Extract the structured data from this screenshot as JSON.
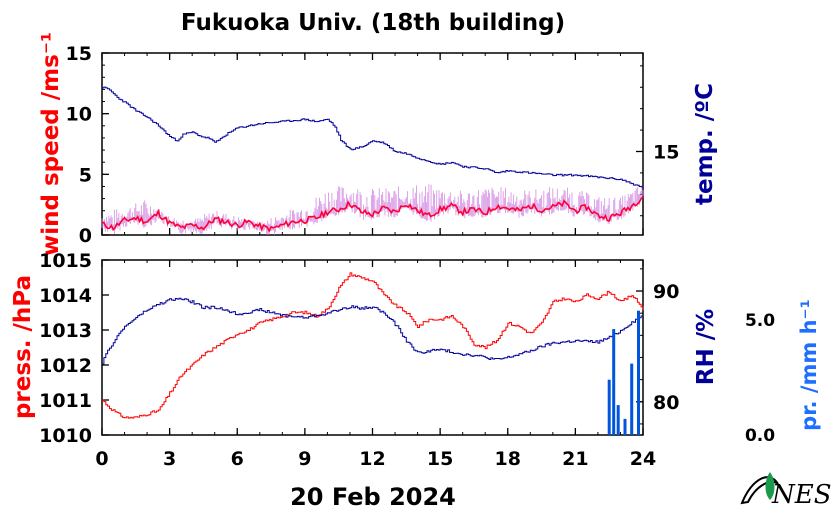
{
  "title": "Fukuoka Univ. (18th building)",
  "date_label": "20 Feb 2024",
  "logo_text": "NES",
  "colors": {
    "wind_label": "#ff0000",
    "wind_line": "#ff0033",
    "wind_gust": "#cc77dd",
    "temp": "#000099",
    "pressure": "#ff0000",
    "rh": "#000099",
    "precip": "#0055dd",
    "precip_label": "#1e6fff",
    "logo_leaf": "#1a9a4a"
  },
  "chart_data": [
    {
      "type": "line",
      "panel": "top",
      "x": [
        0,
        24
      ],
      "xlim": [
        0,
        24
      ],
      "x_ticks": [
        0,
        3,
        6,
        9,
        12,
        15,
        18,
        21,
        24
      ],
      "left_axis": {
        "label": "wind speed /ms⁻¹",
        "ylim": [
          0,
          15
        ],
        "ticks": [
          "0",
          "5",
          "10",
          "15"
        ]
      },
      "right_axis": {
        "label": "temp. /ºC",
        "ylim": [
          11.1,
          19.6
        ],
        "ticks": [
          "15"
        ]
      },
      "series": [
        {
          "key": "wind",
          "axis": "left",
          "x": [
            0,
            0.5,
            1,
            1.5,
            2,
            2.5,
            3,
            3.5,
            4,
            4.5,
            5,
            5.5,
            6,
            6.5,
            7,
            7.5,
            8,
            8.5,
            9,
            9.5,
            10,
            10.5,
            11,
            11.5,
            12,
            12.5,
            13,
            13.5,
            14,
            14.5,
            15,
            15.5,
            16,
            16.5,
            17,
            17.5,
            18,
            18.5,
            19,
            19.5,
            20,
            20.5,
            21,
            21.5,
            22,
            22.5,
            23,
            23.5,
            24
          ],
          "values": [
            0.9,
            0.6,
            1.2,
            1.4,
            1.1,
            1.8,
            1.0,
            0.6,
            0.8,
            0.6,
            1.3,
            1.1,
            0.8,
            1.1,
            0.7,
            0.5,
            0.8,
            1.1,
            1.2,
            1.4,
            1.9,
            2.1,
            2.6,
            1.9,
            1.7,
            2.2,
            1.9,
            2.6,
            2.0,
            1.6,
            2.1,
            2.4,
            1.9,
            2.1,
            1.8,
            2.4,
            2.2,
            2.0,
            2.4,
            2.1,
            2.3,
            2.6,
            2.0,
            2.3,
            1.6,
            1.4,
            1.8,
            2.4,
            3.2
          ]
        },
        {
          "key": "wind_gust",
          "axis": "left",
          "x": [
            0,
            1,
            2,
            3,
            4,
            5,
            6,
            7,
            8,
            9,
            10,
            11,
            12,
            13,
            14,
            15,
            16,
            17,
            18,
            19,
            20,
            21,
            22,
            23,
            24
          ],
          "values": [
            1.8,
            2.2,
            2.9,
            1.5,
            1.2,
            2.0,
            1.5,
            1.0,
            1.8,
            2.4,
            3.8,
            4.0,
            3.7,
            3.8,
            4.1,
            3.9,
            3.5,
            3.9,
            3.8,
            3.6,
            3.9,
            3.7,
            3.1,
            3.0,
            4.2
          ]
        },
        {
          "key": "temp",
          "axis": "right",
          "x": [
            0,
            0.3,
            0.7,
            1,
            1.5,
            2,
            2.5,
            3,
            3.3,
            3.6,
            4,
            4.4,
            4.8,
            5,
            5.5,
            6,
            6.5,
            7,
            8,
            9,
            9.5,
            10,
            10.3,
            10.6,
            11,
            11.5,
            12,
            12.5,
            13,
            13.5,
            14,
            15,
            15.5,
            16,
            17,
            17.5,
            18,
            19,
            20,
            21,
            22,
            23,
            23.5,
            24
          ],
          "values": [
            18.0,
            17.9,
            17.5,
            17.3,
            16.9,
            16.6,
            16.2,
            15.7,
            15.5,
            15.8,
            15.9,
            15.7,
            15.6,
            15.4,
            15.8,
            16.1,
            16.2,
            16.3,
            16.4,
            16.5,
            16.4,
            16.5,
            16.2,
            15.5,
            15.1,
            15.2,
            15.5,
            15.4,
            15.0,
            14.9,
            14.7,
            14.4,
            14.5,
            14.3,
            14.2,
            14.0,
            14.1,
            14.0,
            13.9,
            13.9,
            13.8,
            13.7,
            13.5,
            13.3
          ]
        }
      ]
    },
    {
      "type": "line",
      "panel": "bottom",
      "x": [
        0,
        24
      ],
      "xlim": [
        0,
        24
      ],
      "x_ticks": [
        0,
        3,
        6,
        9,
        12,
        15,
        18,
        21,
        24
      ],
      "x_tick_labels": [
        "0",
        "3",
        "6",
        "9",
        "12",
        "15",
        "18",
        "21",
        "24"
      ],
      "left_axis": {
        "label": "press. /hPa",
        "ylim": [
          1010,
          1015
        ],
        "ticks": [
          "1010",
          "1011",
          "1012",
          "1013",
          "1014",
          "1015"
        ]
      },
      "right_axis": {
        "label": "RH /%",
        "ylim": [
          77,
          92.8
        ],
        "ticks": [
          "80",
          "90"
        ]
      },
      "far_right_axis": {
        "label": "pr. /mm h⁻¹",
        "ylim": [
          0,
          7.6
        ],
        "ticks": [
          "0.0",
          "5.0"
        ]
      },
      "series": [
        {
          "key": "pressure",
          "axis": "left",
          "x": [
            0,
            0.3,
            0.7,
            1,
            1.5,
            2,
            2.5,
            3,
            3.5,
            4,
            4.5,
            5,
            5.5,
            6,
            6.5,
            7,
            7.5,
            8,
            8.5,
            9,
            9.5,
            10,
            10.5,
            11,
            11.5,
            12,
            12.5,
            13,
            13.5,
            14,
            14.5,
            15,
            15.5,
            16,
            16.5,
            17,
            17.5,
            18,
            18.5,
            19,
            19.5,
            20,
            20.5,
            21,
            21.5,
            22,
            22.5,
            23,
            23.5,
            24
          ],
          "values": [
            1011.0,
            1010.8,
            1010.6,
            1010.5,
            1010.5,
            1010.6,
            1010.7,
            1011.2,
            1011.7,
            1012.0,
            1012.3,
            1012.5,
            1012.7,
            1012.9,
            1013.0,
            1013.2,
            1013.3,
            1013.4,
            1013.5,
            1013.5,
            1013.4,
            1013.6,
            1014.2,
            1014.6,
            1014.5,
            1014.4,
            1014.0,
            1013.7,
            1013.5,
            1013.1,
            1013.3,
            1013.3,
            1013.4,
            1013.1,
            1012.6,
            1012.5,
            1012.7,
            1013.2,
            1013.1,
            1012.9,
            1013.2,
            1013.8,
            1013.9,
            1013.8,
            1014.0,
            1013.9,
            1014.1,
            1013.8,
            1014.0,
            1013.6
          ]
        },
        {
          "key": "rh",
          "axis": "right",
          "x": [
            0,
            0.3,
            0.7,
            1,
            1.5,
            2,
            2.5,
            3,
            3.5,
            4,
            4.5,
            5,
            5.5,
            6,
            7,
            8,
            9,
            10,
            10.5,
            11,
            11.5,
            12,
            12.5,
            13,
            13.5,
            14,
            14.5,
            15,
            15.5,
            16,
            16.5,
            17,
            17.5,
            18,
            18.5,
            19,
            19.5,
            20,
            21,
            22,
            22.5,
            23,
            23.5,
            24
          ],
          "values": [
            83.5,
            84.8,
            86.0,
            86.8,
            87.6,
            88.3,
            88.8,
            89.2,
            89.3,
            89.0,
            88.5,
            88.5,
            88.3,
            87.9,
            88.3,
            87.8,
            87.6,
            88.0,
            88.3,
            88.6,
            88.4,
            88.6,
            88.0,
            87.0,
            85.5,
            84.4,
            84.6,
            84.7,
            84.5,
            84.3,
            84.2,
            84.0,
            83.8,
            84.0,
            84.3,
            84.6,
            85.0,
            85.3,
            85.5,
            85.4,
            85.8,
            86.4,
            87.2,
            87.8
          ]
        },
        {
          "key": "precip",
          "axis": "far_right",
          "x": [
            22.5,
            22.7,
            22.9,
            23.2,
            23.5,
            23.8
          ],
          "values": [
            2.4,
            4.6,
            1.3,
            0.7,
            3.1,
            5.4
          ]
        }
      ]
    }
  ]
}
